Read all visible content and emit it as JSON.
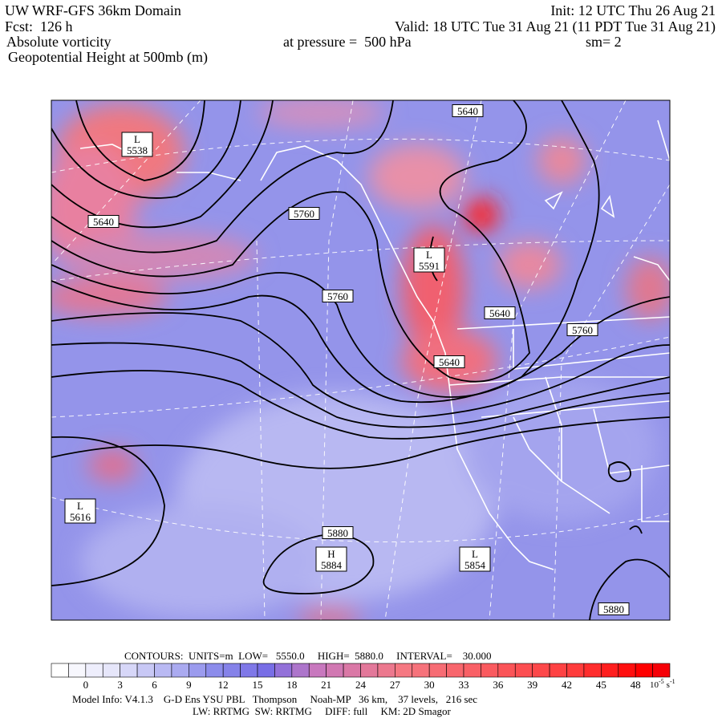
{
  "header": {
    "title": "UW WRF-GFS 36km Domain",
    "init": "Init: 12 UTC Thu 26 Aug 21",
    "fcst": "Fcst:  126 h",
    "valid": "Valid: 18 UTC Tue 31 Aug 21 (11 PDT Tue 31 Aug 21)",
    "field": "Absolute vorticity",
    "pressure": "at pressure =  500 hPa",
    "smoothing": "sm= 2",
    "field2": "Geopotential Height at 500mb (m)"
  },
  "contour_labels": [
    "5640",
    "5640",
    "5760",
    "5760",
    "5640",
    "5760",
    "5640",
    "5880",
    "5880"
  ],
  "centers": [
    {
      "kind": "L",
      "value": "5538"
    },
    {
      "kind": "L",
      "value": "5591"
    },
    {
      "kind": "L",
      "value": "5616"
    },
    {
      "kind": "H",
      "value": "5884"
    },
    {
      "kind": "L",
      "value": "5854"
    }
  ],
  "colorbar": {
    "ticks": [
      0,
      3,
      6,
      9,
      12,
      15,
      18,
      21,
      24,
      27,
      30,
      33,
      36,
      39,
      42,
      45,
      48
    ],
    "unit_base": "10",
    "unit_exp": "-5",
    "unit": "s",
    "unit_sub_exp": "-1"
  },
  "footer": {
    "contours": "CONTOURS:  UNITS=m  LOW=   5550.0     HIGH=  5880.0     INTERVAL=    30.000",
    "model_info": "Model Info: V4.1.3    G-D Ens YSU PBL   Thompson     Noah-MP   36 km,    37 levels,   216 sec",
    "physics": "LW: RRTMG  SW: RRTMG     DIFF: full     KM: 2D Smagor"
  }
}
